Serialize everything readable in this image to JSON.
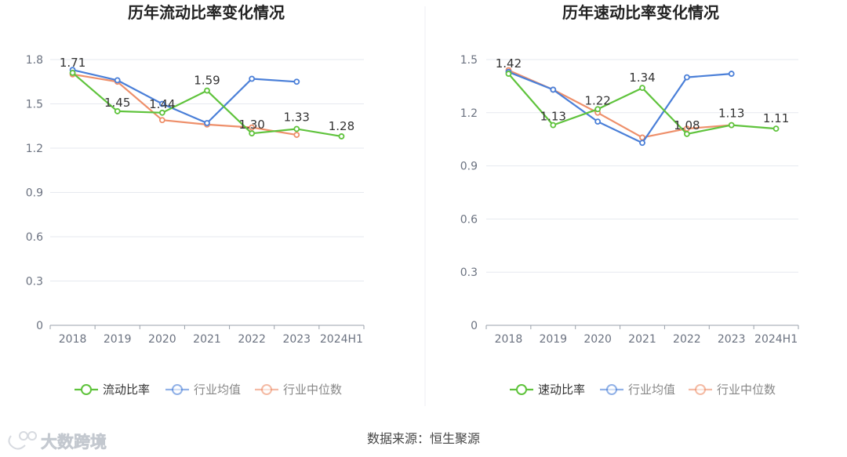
{
  "colors": {
    "series_main": "#5fc33c",
    "series_avg": "#4a7fd8",
    "series_median": "#ee8f6a",
    "grid": "#e6e9ef",
    "axis": "#9aa1ab",
    "tick_text": "#6b7280",
    "title_text": "#222222",
    "label_text": "#333333",
    "divider": "#eceff3",
    "watermark": "#d0d4da"
  },
  "chart_data": [
    {
      "type": "line",
      "title": "历年流动比率变化情况",
      "categories": [
        "2018",
        "2019",
        "2020",
        "2021",
        "2022",
        "2023",
        "2024H1"
      ],
      "ylim": [
        0,
        1.8
      ],
      "yticks": [
        "0",
        "0.3",
        "0.6",
        "0.9",
        "1.2",
        "1.5",
        "1.8"
      ],
      "series": [
        {
          "name": "流动比率",
          "key": "main",
          "values": [
            1.71,
            1.45,
            1.44,
            1.59,
            1.3,
            1.33,
            1.28
          ],
          "labels": [
            "1.71",
            "1.45",
            "1.44",
            "1.59",
            "1.30",
            "1.33",
            "1.28"
          ]
        },
        {
          "name": "行业均值",
          "key": "avg",
          "values": [
            1.73,
            1.66,
            1.5,
            1.37,
            1.67,
            1.65,
            null
          ]
        },
        {
          "name": "行业中位数",
          "key": "median",
          "values": [
            1.7,
            1.65,
            1.39,
            1.36,
            1.34,
            1.29,
            null
          ]
        }
      ]
    },
    {
      "type": "line",
      "title": "历年速动比率变化情况",
      "categories": [
        "2018",
        "2019",
        "2020",
        "2021",
        "2022",
        "2023",
        "2024H1"
      ],
      "ylim": [
        0,
        1.5
      ],
      "yticks": [
        "0",
        "0.3",
        "0.6",
        "0.9",
        "1.2",
        "1.5"
      ],
      "series": [
        {
          "name": "速动比率",
          "key": "main",
          "values": [
            1.42,
            1.13,
            1.22,
            1.34,
            1.08,
            1.13,
            1.11
          ],
          "labels": [
            "1.42",
            "1.13",
            "1.22",
            "1.34",
            "1.08",
            "1.13",
            "1.11"
          ]
        },
        {
          "name": "行业均值",
          "key": "avg",
          "values": [
            1.43,
            1.33,
            1.15,
            1.03,
            1.4,
            1.42,
            null
          ]
        },
        {
          "name": "行业中位数",
          "key": "median",
          "values": [
            1.44,
            1.33,
            1.2,
            1.06,
            1.11,
            1.13,
            null
          ]
        }
      ]
    }
  ],
  "footer": {
    "source": "数据来源：恒生聚源",
    "watermark": "大数跨境"
  }
}
